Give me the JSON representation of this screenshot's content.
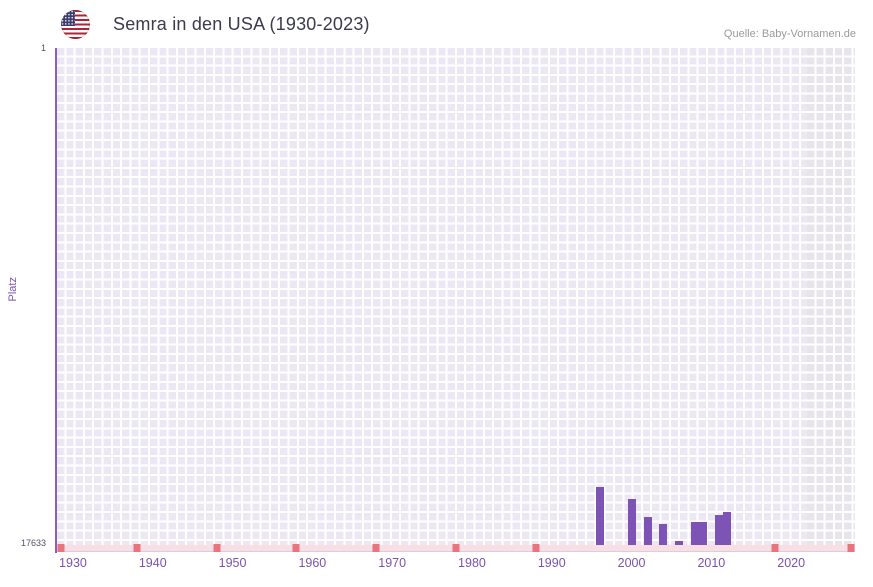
{
  "header": {
    "title": "Semra in den USA (1930-2023)",
    "source": "Quelle: Baby-Vornamen.de",
    "flag_icon": "us-flag-icon"
  },
  "chart_data": {
    "type": "bar",
    "title": "Semra in den USA (1930-2023)",
    "xlabel": "",
    "ylabel": "Platz",
    "y_axis": {
      "min": 1,
      "max": 17633,
      "inverted": true,
      "top_label": "1",
      "bottom_label": "17633"
    },
    "x_range": [
      1928,
      2028
    ],
    "x_ticks": [
      1930,
      1940,
      1950,
      1960,
      1970,
      1980,
      1990,
      2000,
      2010,
      2020
    ],
    "grid": true,
    "legend_position": "none",
    "bars": [
      {
        "year": 1996,
        "rank": 15560
      },
      {
        "year": 2000,
        "rank": 15990
      },
      {
        "year": 2002,
        "rank": 16640
      },
      {
        "year": 2004,
        "rank": 16890
      },
      {
        "year": 2006,
        "rank": 17490
      },
      {
        "year": 2008,
        "rank": 16820
      },
      {
        "year": 2009,
        "rank": 16820
      },
      {
        "year": 2011,
        "rank": 16570
      },
      {
        "year": 2012,
        "rank": 16460
      }
    ],
    "unranked_marker_percents": [
      0.5,
      10,
      20,
      30,
      40,
      50,
      60,
      90,
      99.5
    ],
    "gray_band_percent": [
      94,
      100
    ],
    "colors": {
      "bar": "#7d54b5",
      "plot_bg": "#ebe8f4",
      "grid_line": "#ffffff",
      "axis_line": "#8a5fc0",
      "tick_label": "#7a52b3",
      "unranked_strip": "#f9dee3",
      "unranked_mark": "#e8747e",
      "gray_band": "#e7e5ea",
      "title_text": "#3b3b4d",
      "source_text": "#9a9a9a"
    }
  }
}
